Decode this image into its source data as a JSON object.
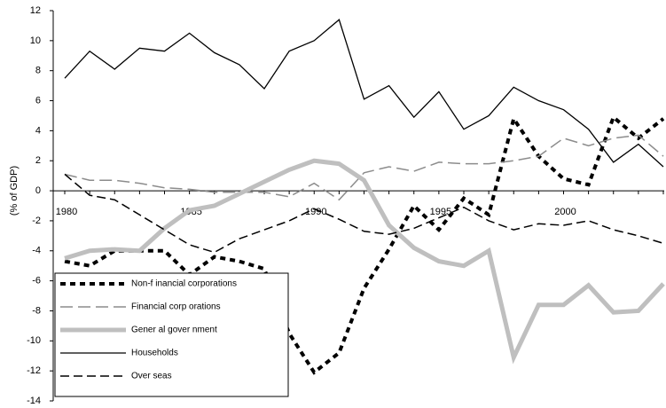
{
  "chart_data": {
    "type": "line",
    "y_label": "(% of GDP)",
    "categories": [
      "1980",
      null,
      null,
      null,
      null,
      "1985",
      null,
      null,
      null,
      null,
      "1990",
      null,
      null,
      null,
      null,
      "1995",
      null,
      null,
      null,
      null,
      "2000",
      null,
      null,
      null,
      null
    ],
    "ylim": [
      -14,
      12
    ],
    "yticks": [
      -14,
      -12,
      -10,
      -8,
      -6,
      -4,
      -2,
      0,
      2,
      4,
      6,
      8,
      10,
      12
    ],
    "legend": "lower left",
    "series": [
      {
        "name": "Non-f inancial corporations",
        "color": "#000000",
        "dash": "6 5",
        "width": 4,
        "values": [
          -4.7,
          -5.0,
          -4.0,
          -4.0,
          -4.0,
          -5.6,
          -4.4,
          -4.7,
          -5.2,
          -9.5,
          -12.1,
          -10.8,
          -6.5,
          -3.9,
          -1.0,
          -2.6,
          -0.5,
          -1.6,
          4.8,
          2.3,
          0.8,
          0.4,
          4.9,
          3.5,
          4.8
        ]
      },
      {
        "name": "Financial corp orations",
        "color": "#8c8c8c",
        "dash": "14 6",
        "width": 1.5,
        "values": [
          1.1,
          0.7,
          0.7,
          0.5,
          0.2,
          0.1,
          -0.1,
          -0.1,
          -0.1,
          -0.4,
          0.5,
          -0.6,
          1.2,
          1.6,
          1.3,
          1.9,
          1.8,
          1.8,
          2.0,
          2.3,
          3.5,
          3.0,
          3.5,
          3.7,
          2.3
        ]
      },
      {
        "name": "Gener al gover nment",
        "color": "#bfbfbf",
        "dash": "none",
        "width": 5,
        "values": [
          -4.5,
          -4.0,
          -3.9,
          -4.0,
          -2.5,
          -1.3,
          -1.0,
          -0.2,
          0.6,
          1.4,
          2.0,
          1.8,
          0.7,
          -2.3,
          -3.8,
          -4.7,
          -5.0,
          -4.0,
          -11.1,
          -7.6,
          -7.6,
          -6.3,
          -8.1,
          -8.0,
          -6.2
        ]
      },
      {
        "name": "Households",
        "color": "#000000",
        "dash": "none",
        "width": 1.3,
        "values": [
          7.5,
          9.3,
          8.1,
          9.5,
          9.3,
          10.5,
          9.2,
          8.4,
          6.8,
          9.3,
          10.0,
          11.4,
          6.1,
          7.0,
          4.9,
          6.6,
          4.1,
          5.0,
          6.9,
          6.0,
          5.4,
          4.1,
          1.9,
          3.1,
          1.6
        ]
      },
      {
        "name": "Over seas",
        "color": "#000000",
        "dash": "10 5",
        "width": 1.5,
        "values": [
          1.1,
          -0.3,
          -0.6,
          -1.6,
          -2.6,
          -3.6,
          -4.1,
          -3.2,
          -2.6,
          -2.0,
          -1.2,
          -1.9,
          -2.7,
          -2.9,
          -2.5,
          -1.8,
          -1.1,
          -2.0,
          -2.6,
          -2.2,
          -2.3,
          -2.0,
          -2.6,
          -3.0,
          -3.5
        ]
      }
    ]
  }
}
